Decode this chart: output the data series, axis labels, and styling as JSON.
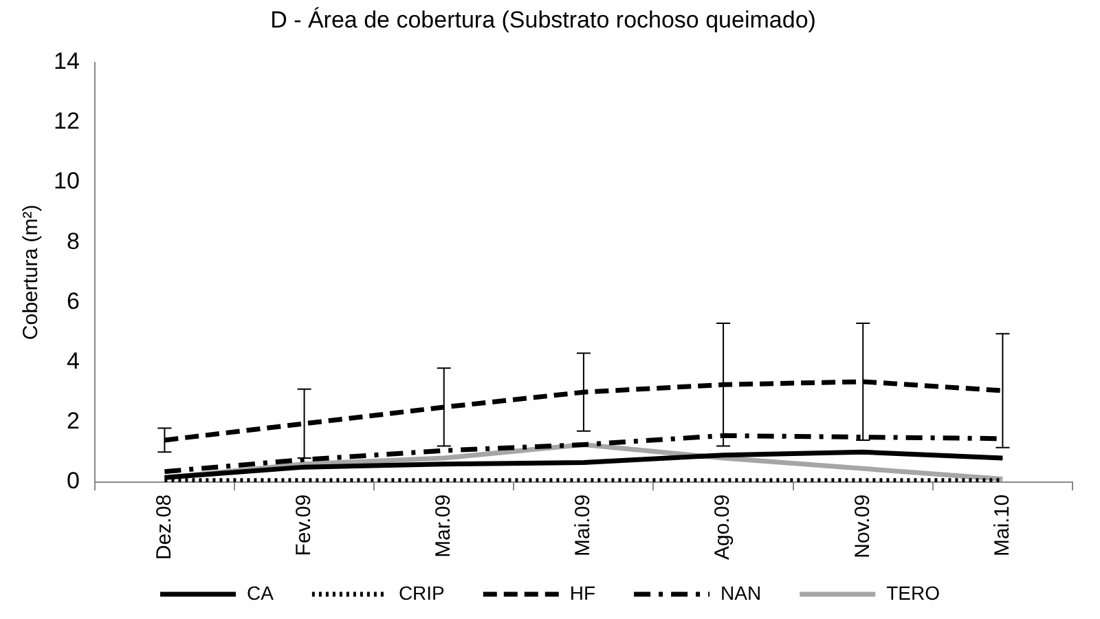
{
  "chart_data": {
    "type": "line",
    "title": "D - Área de cobertura (Substrato rochoso queimado)",
    "ylabel": "Cobertura (m²)",
    "categories": [
      "Dez.08",
      "Fev.09",
      "Mar.09",
      "Mai.09",
      "Ago.09",
      "Nov.09",
      "Mai.10"
    ],
    "ylim": [
      0,
      14
    ],
    "yticks": [
      0,
      2,
      4,
      6,
      8,
      10,
      12,
      14
    ],
    "grid": false,
    "legend": "bottom",
    "marker": "none",
    "series": [
      {
        "name": "CA",
        "color": "#000000",
        "line_style": "solid",
        "values": [
          0.15,
          0.5,
          0.6,
          0.65,
          0.9,
          1.0,
          0.8
        ]
      },
      {
        "name": "CRIP",
        "color": "#000000",
        "line_style": "dotted",
        "values": [
          0.05,
          0.05,
          0.05,
          0.05,
          0.05,
          0.05,
          0.05
        ]
      },
      {
        "name": "HF",
        "color": "#000000",
        "line_style": "dashed",
        "values": [
          1.4,
          1.95,
          2.5,
          3.0,
          3.25,
          3.35,
          3.05
        ],
        "errors": [
          0.4,
          1.15,
          1.3,
          1.3,
          2.05,
          1.95,
          1.9
        ]
      },
      {
        "name": "NAN",
        "color": "#000000",
        "line_style": "dashdot",
        "values": [
          0.35,
          0.75,
          1.05,
          1.25,
          1.55,
          1.5,
          1.45
        ]
      },
      {
        "name": "TERO",
        "color": "#a6a6a6",
        "line_style": "solid",
        "values": [
          0.15,
          0.6,
          0.8,
          1.25,
          0.8,
          0.45,
          0.1
        ]
      }
    ]
  }
}
